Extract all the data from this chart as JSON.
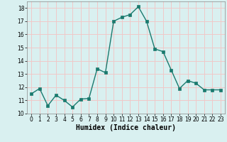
{
  "x": [
    0,
    1,
    2,
    3,
    4,
    5,
    6,
    7,
    8,
    9,
    10,
    11,
    12,
    13,
    14,
    15,
    16,
    17,
    18,
    19,
    20,
    21,
    22,
    23
  ],
  "y": [
    11.5,
    11.9,
    10.6,
    11.4,
    11.0,
    10.5,
    11.1,
    11.15,
    13.4,
    13.1,
    17.0,
    17.3,
    17.5,
    18.1,
    17.0,
    14.9,
    14.7,
    13.3,
    11.9,
    12.5,
    12.3,
    11.8,
    11.8,
    11.8
  ],
  "line_color": "#1a7a6e",
  "marker": "s",
  "marker_size": 2.5,
  "bg_color": "#d9f0f0",
  "grid_color": "#f0c8c8",
  "xlabel": "Humidex (Indice chaleur)",
  "xlim": [
    -0.5,
    23.5
  ],
  "ylim": [
    10,
    18.5
  ],
  "yticks": [
    10,
    11,
    12,
    13,
    14,
    15,
    16,
    17,
    18
  ],
  "xticks": [
    0,
    1,
    2,
    3,
    4,
    5,
    6,
    7,
    8,
    9,
    10,
    11,
    12,
    13,
    14,
    15,
    16,
    17,
    18,
    19,
    20,
    21,
    22,
    23
  ],
  "label_fontsize": 7,
  "tick_fontsize": 5.5
}
